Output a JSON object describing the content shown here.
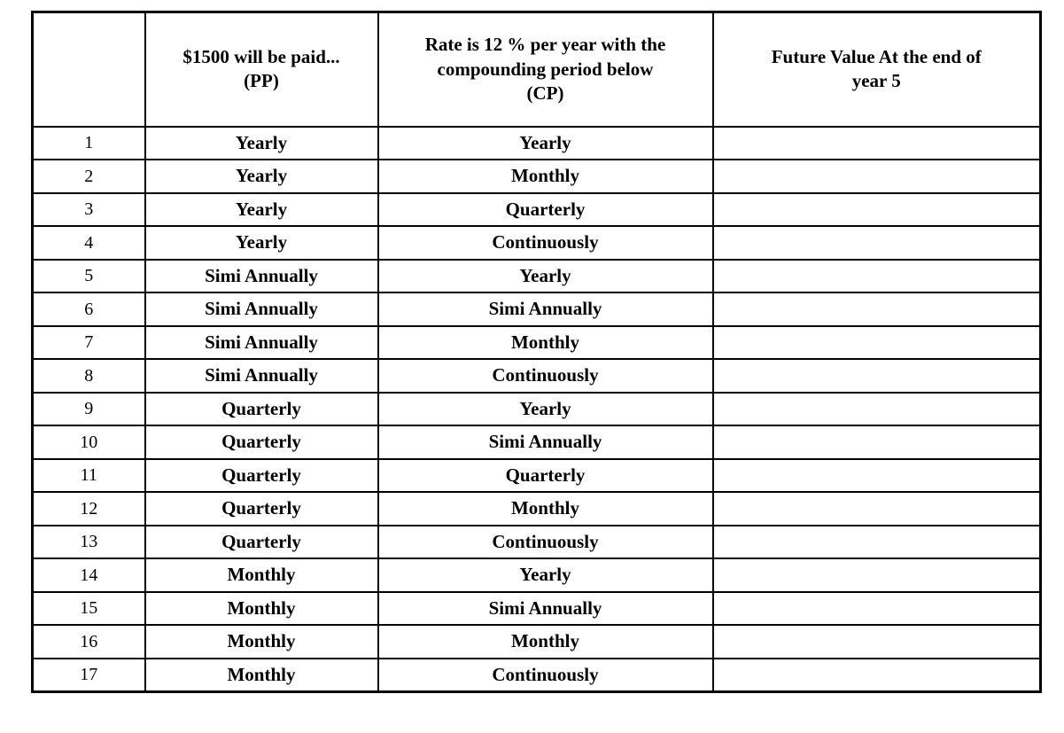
{
  "table": {
    "headers": [
      "",
      "$1500 will be paid...\n(PP)",
      "Rate is 12 % per year with the\ncompounding period below\n(CP)",
      "Future Value At the end of\nyear 5"
    ],
    "rows": [
      {
        "index": "1",
        "pp": "Yearly",
        "cp": "Yearly",
        "fv": ""
      },
      {
        "index": "2",
        "pp": "Yearly",
        "cp": "Monthly",
        "fv": ""
      },
      {
        "index": "3",
        "pp": "Yearly",
        "cp": "Quarterly",
        "fv": ""
      },
      {
        "index": "4",
        "pp": "Yearly",
        "cp": "Continuously",
        "fv": ""
      },
      {
        "index": "5",
        "pp": "Simi Annually",
        "cp": "Yearly",
        "fv": ""
      },
      {
        "index": "6",
        "pp": "Simi Annually",
        "cp": "Simi Annually",
        "fv": ""
      },
      {
        "index": "7",
        "pp": "Simi Annually",
        "cp": "Monthly",
        "fv": ""
      },
      {
        "index": "8",
        "pp": "Simi Annually",
        "cp": "Continuously",
        "fv": ""
      },
      {
        "index": "9",
        "pp": "Quarterly",
        "cp": "Yearly",
        "fv": ""
      },
      {
        "index": "10",
        "pp": "Quarterly",
        "cp": "Simi Annually",
        "fv": ""
      },
      {
        "index": "11",
        "pp": "Quarterly",
        "cp": "Quarterly",
        "fv": ""
      },
      {
        "index": "12",
        "pp": "Quarterly",
        "cp": "Monthly",
        "fv": ""
      },
      {
        "index": "13",
        "pp": "Quarterly",
        "cp": "Continuously",
        "fv": ""
      },
      {
        "index": "14",
        "pp": "Monthly",
        "cp": "Yearly",
        "fv": ""
      },
      {
        "index": "15",
        "pp": "Monthly",
        "cp": "Simi Annually",
        "fv": ""
      },
      {
        "index": "16",
        "pp": "Monthly",
        "cp": "Monthly",
        "fv": ""
      },
      {
        "index": "17",
        "pp": "Monthly",
        "cp": "Continuously",
        "fv": ""
      }
    ]
  }
}
